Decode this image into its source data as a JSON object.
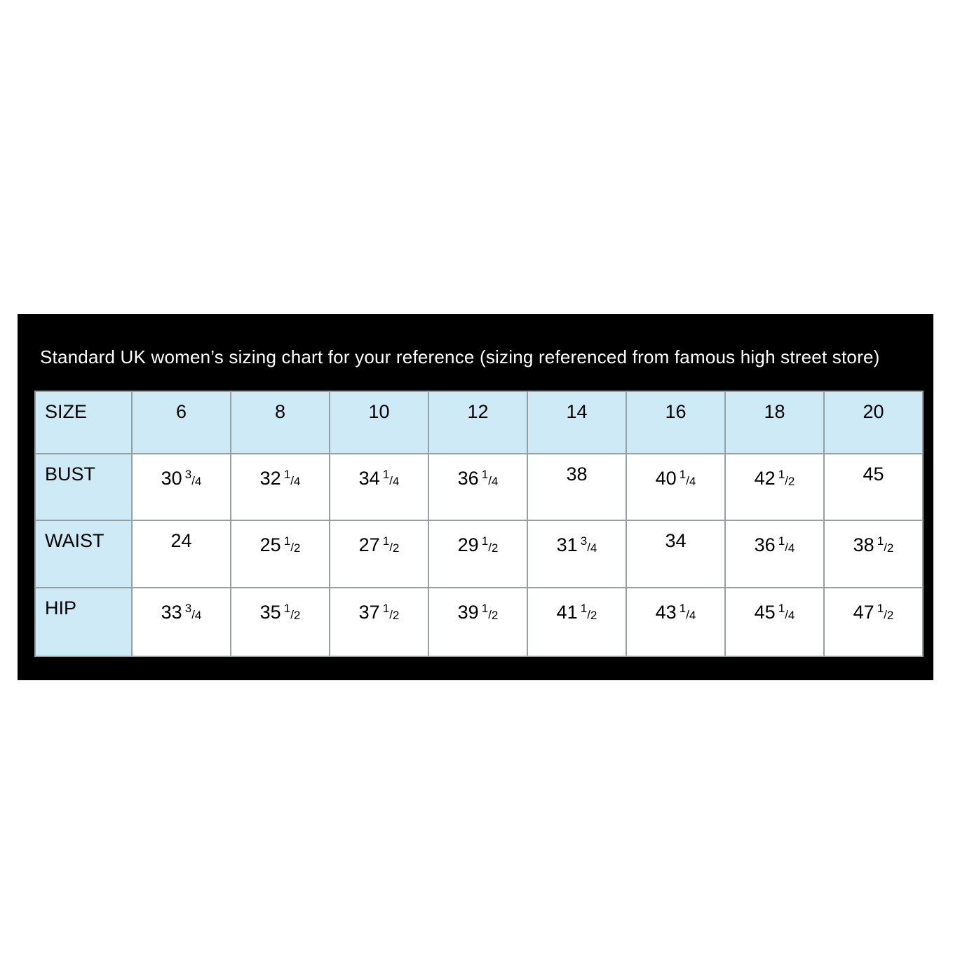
{
  "panel": {
    "title": "Standard UK women’s sizing chart for your reference (sizing referenced from famous high street store)"
  },
  "colors": {
    "page_bg": "#ffffff",
    "panel_bg": "#000000",
    "title_text": "#ffffff",
    "header_bg": "#ceeaf7",
    "cell_bg": "#ffffff",
    "cell_text": "#000000",
    "grid_line": "#969fa4"
  },
  "chart_data": {
    "type": "table",
    "title": "Standard UK women’s sizing chart for your reference (sizing referenced from famous high street store)",
    "columns": [
      "SIZE",
      "6",
      "8",
      "10",
      "12",
      "14",
      "16",
      "18",
      "20"
    ],
    "rows": [
      {
        "label": "BUST",
        "values": [
          "30 3/4",
          "32 1/4",
          "34 1/4",
          "36 1/4",
          "38",
          "40 1/4",
          "42 1/2",
          "45"
        ]
      },
      {
        "label": "WAIST",
        "values": [
          "24",
          "25 1/2",
          "27 1/2",
          "29 1/2",
          "31 3/4",
          "34",
          "36 1/4",
          "38 1/2"
        ]
      },
      {
        "label": "HIP",
        "values": [
          "33 3/4",
          "35 1/2",
          "37 1/2",
          "39 1/2",
          "41 1/2",
          "43 1/4",
          "45 1/4",
          "47 1/2"
        ]
      }
    ],
    "layout": {
      "grid": true,
      "header_row_highlighted": true,
      "label_column_highlighted": true,
      "units": "inches (implied)"
    }
  }
}
